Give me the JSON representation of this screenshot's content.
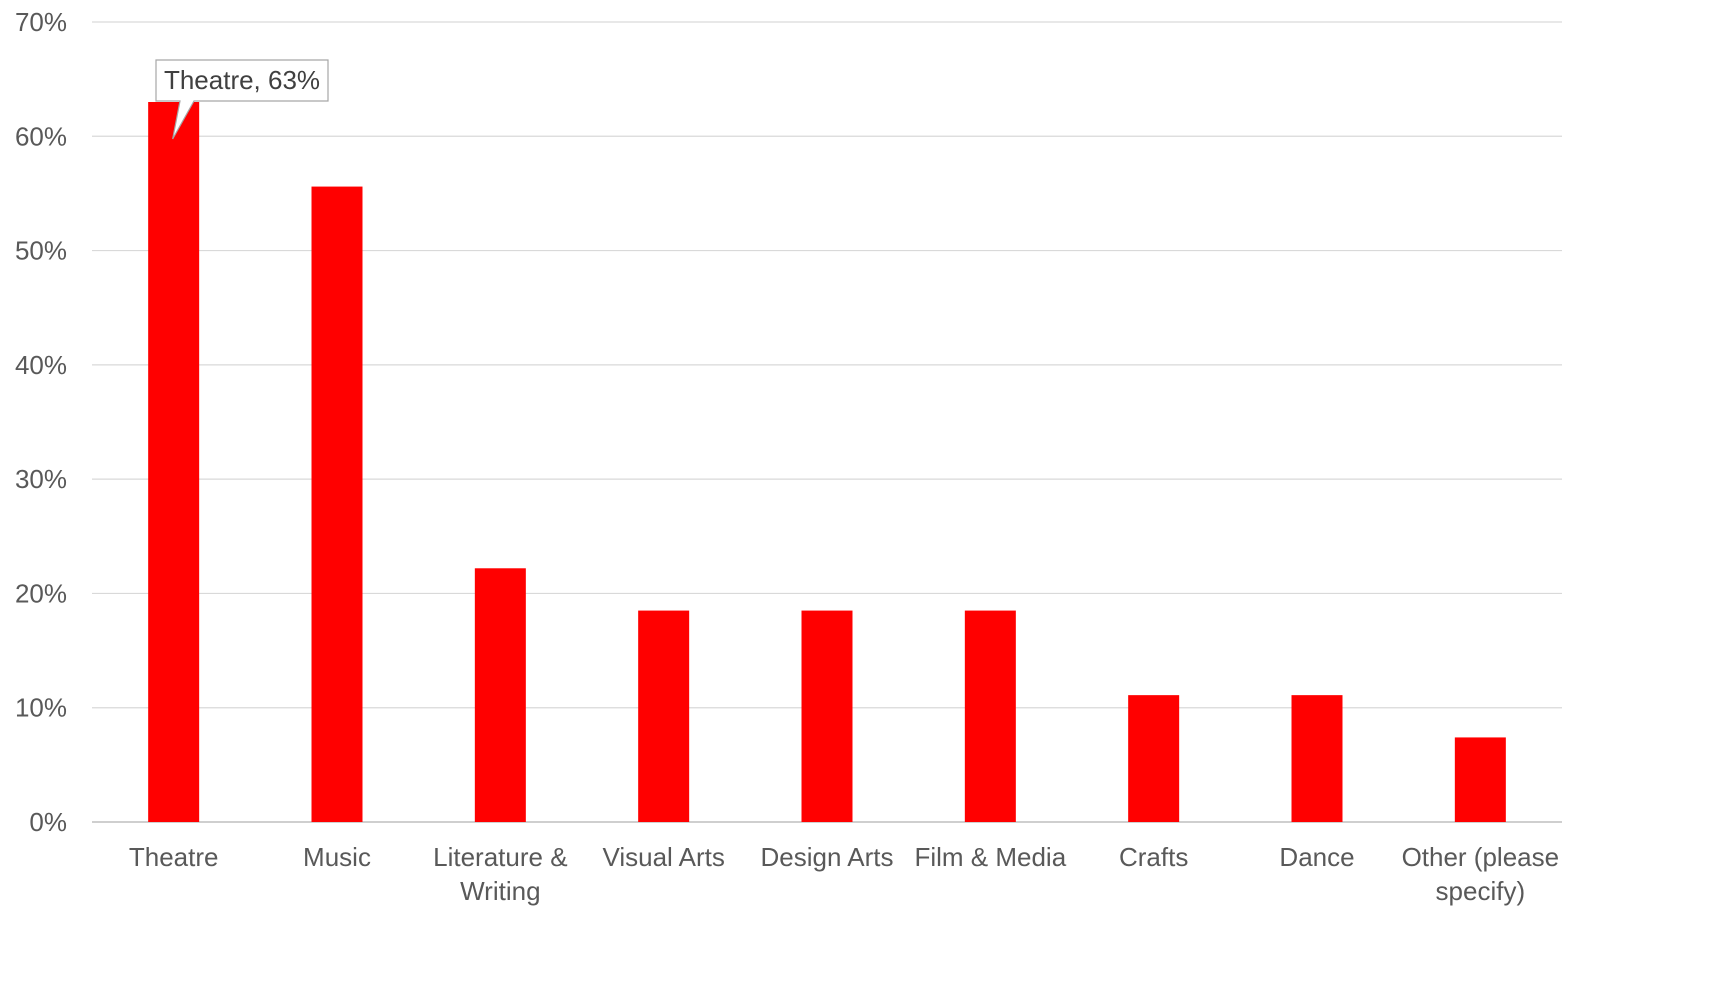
{
  "chart_data": {
    "type": "bar",
    "categories": [
      [
        "Theatre"
      ],
      [
        "Music"
      ],
      [
        "Literature &",
        "Writing"
      ],
      [
        "Visual Arts"
      ],
      [
        "Design Arts"
      ],
      [
        "Film & Media"
      ],
      [
        "Crafts"
      ],
      [
        "Dance"
      ],
      [
        "Other (please",
        "specify)"
      ]
    ],
    "values": [
      63,
      55.6,
      22.2,
      18.5,
      18.5,
      18.5,
      11.1,
      11.1,
      7.4
    ],
    "ylim": [
      0,
      70
    ],
    "yticks": [
      "0%",
      "10%",
      "20%",
      "30%",
      "40%",
      "50%",
      "60%",
      "70%"
    ],
    "grid": true,
    "bar_color": "#FF0000",
    "annotation": {
      "category_index": 0,
      "text": "Theatre, 63%"
    }
  }
}
